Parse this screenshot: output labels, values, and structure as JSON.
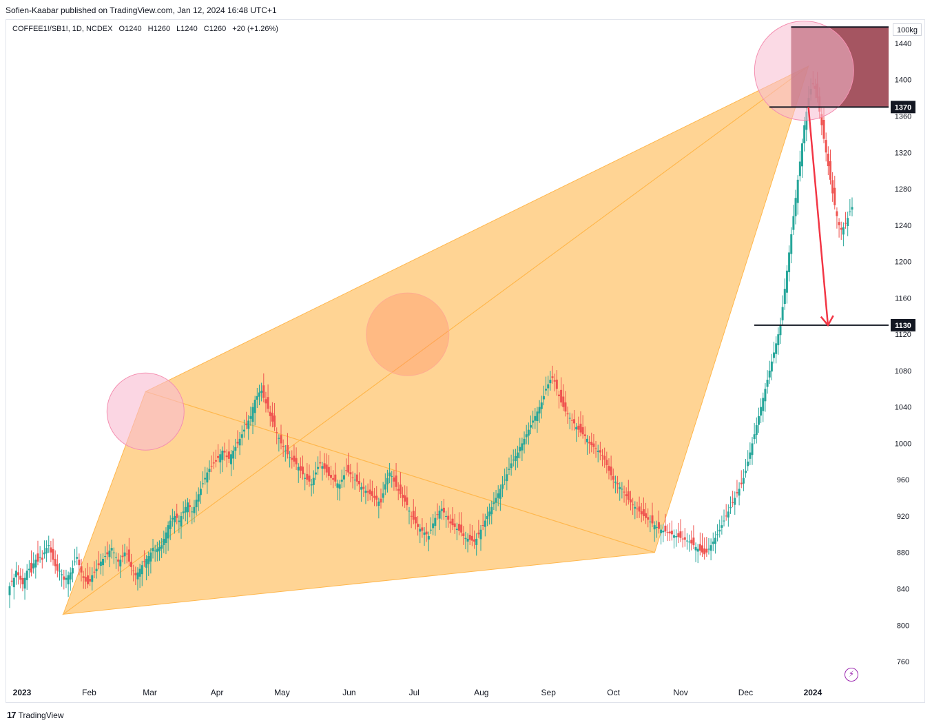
{
  "header": {
    "published": "Sofien-Kaabar published on TradingView.com, Jan 12, 2024 16:48 UTC+1"
  },
  "symbol": {
    "name": "COFFEE1!/SB1!, 1D, NCDEX",
    "open": "O1240",
    "high": "H1260",
    "low": "L1240",
    "close": "C1260",
    "change": "+20 (+1.26%)"
  },
  "unit": "100kg",
  "footer": {
    "brand": "TradingView"
  },
  "colors": {
    "up": "#26a69a",
    "down": "#ef5350",
    "pattern": "#ffb74d",
    "zone": "#8e2a3a",
    "arrow": "#f23645",
    "pink": "#f8bbd0"
  },
  "chart_data": {
    "type": "candlestick",
    "y_axis": {
      "ticks": [
        760,
        800,
        840,
        880,
        920,
        960,
        1000,
        1040,
        1080,
        1120,
        1160,
        1200,
        1240,
        1280,
        1320,
        1360,
        1400,
        1440
      ],
      "range": [
        735,
        1465
      ]
    },
    "x_axis": {
      "labels": [
        "2023",
        "Feb",
        "Mar",
        "Apr",
        "May",
        "Jun",
        "Jul",
        "Aug",
        "Sep",
        "Oct",
        "Nov",
        "Dec",
        "2024"
      ],
      "label_dates": [
        "2023-01-01",
        "2023-02-01",
        "2023-03-01",
        "2023-04-01",
        "2023-05-01",
        "2023-06-01",
        "2023-07-01",
        "2023-08-01",
        "2023-09-01",
        "2023-10-01",
        "2023-11-01",
        "2023-12-01",
        "2024-01-01"
      ]
    },
    "levels": [
      {
        "value": 1370,
        "label": "1370"
      },
      {
        "value": 1130,
        "label": "1130"
      }
    ],
    "pattern": {
      "points": [
        {
          "date": "2023-01-20",
          "price": 812
        },
        {
          "date": "2023-02-27",
          "price": 1057
        },
        {
          "date": "2023-10-20",
          "price": 880
        },
        {
          "date": "2023-12-30",
          "price": 1415
        }
      ]
    },
    "highlights": [
      {
        "date": "2023-02-27",
        "price": 1035
      },
      {
        "date": "2023-06-28",
        "price": 1120
      },
      {
        "date": "2023-12-28",
        "price": 1410
      }
    ],
    "zone": {
      "from_date": "2023-12-22",
      "top": 1458,
      "bottom": 1370
    },
    "arrow": {
      "from": {
        "date": "2023-12-30",
        "price": 1370
      },
      "to": {
        "date": "2024-01-08",
        "price": 1130
      }
    },
    "candles_close": [
      843,
      848,
      852,
      860,
      855,
      850,
      845,
      852,
      860,
      862,
      858,
      868,
      872,
      870,
      875,
      872,
      880,
      885,
      888,
      880,
      872,
      865,
      860,
      860,
      856,
      850,
      852,
      855,
      858,
      863,
      870,
      875,
      866,
      858,
      852,
      848,
      845,
      848,
      855,
      858,
      862,
      866,
      870,
      873,
      876,
      878,
      882,
      885,
      880,
      875,
      870,
      872,
      875,
      880,
      878,
      870,
      864,
      860,
      855,
      858,
      862,
      866,
      870,
      873,
      876,
      880,
      885,
      882,
      884,
      886,
      888,
      895,
      902,
      910,
      915,
      918,
      920,
      918,
      915,
      920,
      925,
      930,
      935,
      930,
      925,
      930,
      938,
      944,
      950,
      956,
      962,
      968,
      972,
      975,
      978,
      980,
      984,
      988,
      992,
      990,
      985,
      983,
      988,
      992,
      996,
      1000,
      1005,
      1010,
      1015,
      1020,
      1025,
      1030,
      1040,
      1048,
      1052,
      1056,
      1058,
      1050,
      1044,
      1038,
      1030,
      1024,
      1018,
      1012,
      1006,
      1000,
      996,
      992,
      988,
      985,
      982,
      980,
      977,
      974,
      970,
      966,
      962,
      960,
      958,
      955,
      962,
      968,
      974,
      978,
      975,
      972,
      968,
      964,
      962,
      960,
      958,
      956,
      955,
      960,
      965,
      970,
      968,
      966,
      962,
      960,
      958,
      955,
      952,
      950,
      948,
      946,
      944,
      942,
      940,
      938,
      936,
      935,
      945,
      955,
      962,
      968,
      964,
      958,
      952,
      948,
      944,
      940,
      936,
      932,
      926,
      920,
      916,
      912,
      908,
      906,
      904,
      902,
      900,
      898,
      905,
      912,
      918,
      922,
      926,
      928,
      924,
      920,
      916,
      912,
      910,
      908,
      906,
      904,
      902,
      898,
      896,
      895,
      894,
      893,
      892,
      895,
      900,
      905,
      910,
      915,
      920,
      925,
      930,
      935,
      940,
      945,
      950,
      955,
      960,
      966,
      972,
      978,
      982,
      986,
      990,
      996,
      1000,
      1005,
      1010,
      1015,
      1020,
      1025,
      1030,
      1035,
      1040,
      1045,
      1052,
      1060,
      1065,
      1070,
      1072,
      1068,
      1060,
      1052,
      1045,
      1040,
      1035,
      1032,
      1028,
      1025,
      1022,
      1018,
      1015,
      1012,
      1010,
      1008,
      1005,
      1000,
      998,
      996,
      994,
      992,
      990,
      986,
      982,
      976,
      970,
      965,
      960,
      958,
      955,
      952,
      950,
      946,
      942,
      938,
      935,
      932,
      930,
      928,
      925,
      922,
      920,
      918,
      916,
      914,
      912,
      910,
      908,
      906,
      905,
      904,
      903,
      902,
      901,
      900,
      899,
      898,
      897,
      896,
      895,
      894,
      893,
      892,
      890,
      888,
      886,
      884,
      882,
      880,
      878,
      880,
      884,
      888,
      892,
      896,
      900,
      905,
      910,
      915,
      920,
      925,
      930,
      935,
      940,
      945,
      950,
      955,
      962,
      970,
      980,
      990,
      1000,
      1010,
      1020,
      1030,
      1040,
      1050,
      1060,
      1070,
      1080,
      1090,
      1100,
      1110,
      1120,
      1130,
      1150,
      1170,
      1190,
      1210,
      1230,
      1250,
      1270,
      1290,
      1310,
      1330,
      1350,
      1365,
      1380,
      1390,
      1395,
      1390,
      1380,
      1365,
      1350,
      1335,
      1320,
      1305,
      1290,
      1275,
      1262,
      1250,
      1240,
      1235,
      1238,
      1242,
      1248,
      1255,
      1260
    ]
  }
}
